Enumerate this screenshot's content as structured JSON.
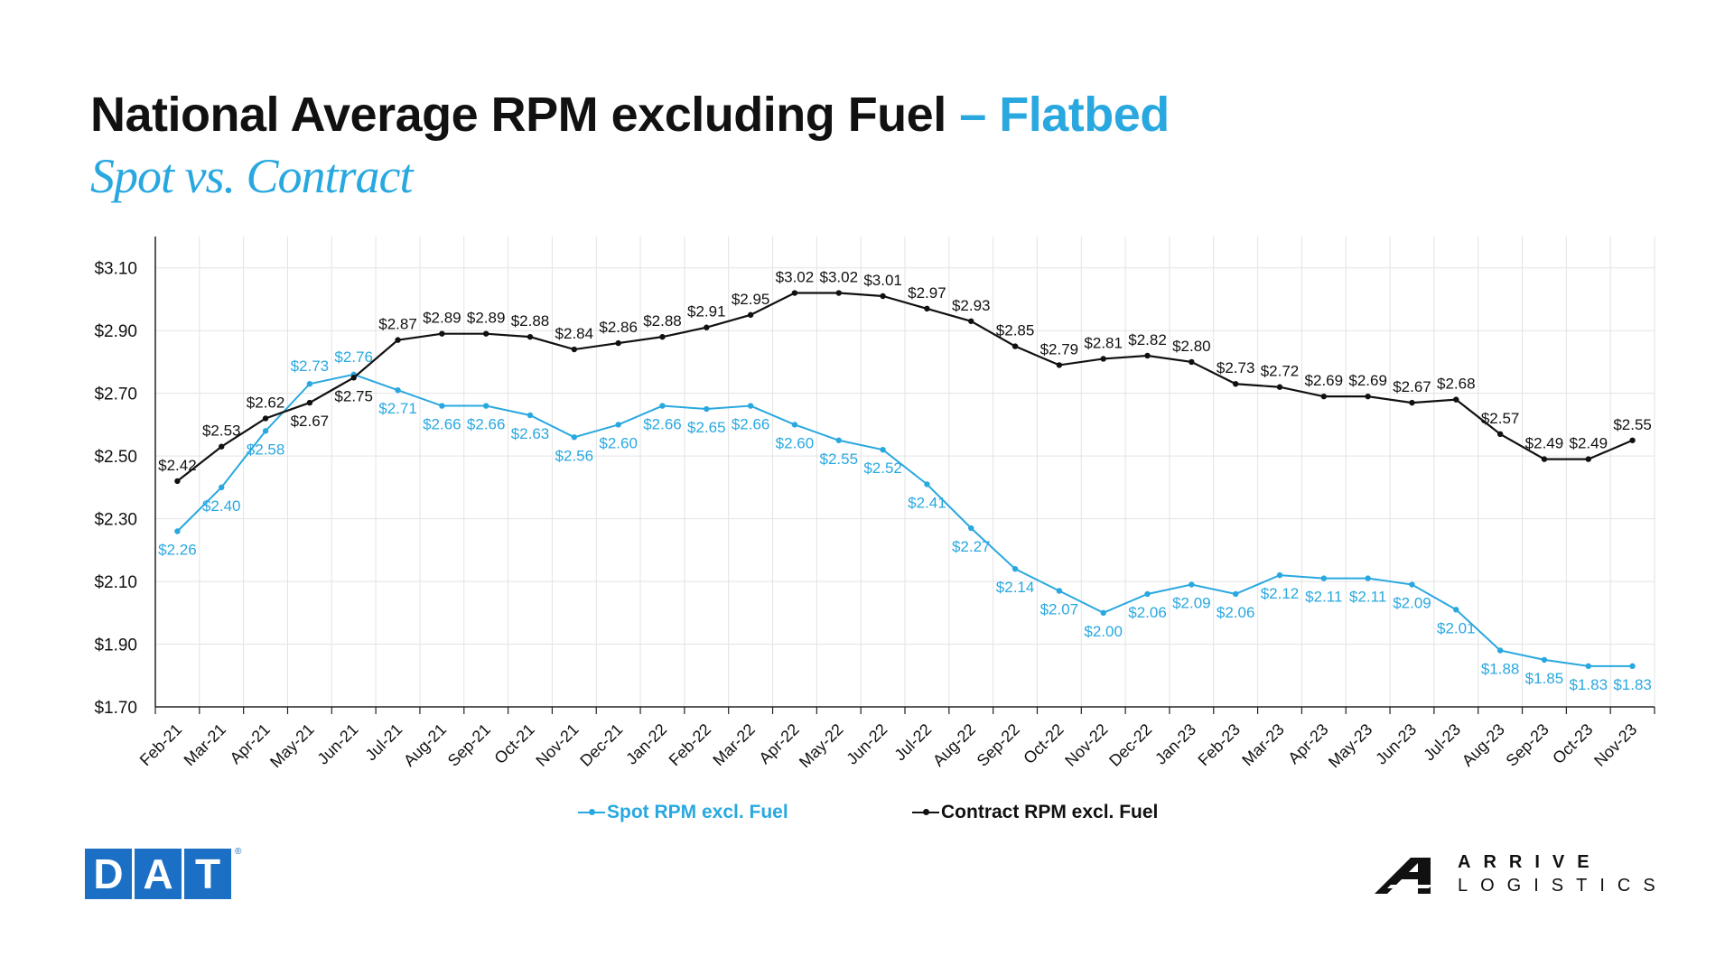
{
  "title": {
    "main": "National Average RPM excluding Fuel",
    "accent": " – Flatbed",
    "subtitle": "Spot vs. Contract"
  },
  "colors": {
    "spot": "#29a8e0",
    "contract": "#111111",
    "grid": "#e3e3e3",
    "axis": "#222222",
    "brand_blue": "#1b6fc4"
  },
  "chart_data": {
    "type": "line",
    "title": "National Average RPM excluding Fuel – Flatbed",
    "subtitle": "Spot vs. Contract",
    "xlabel": "",
    "ylabel": "",
    "ylim": [
      1.7,
      3.2
    ],
    "yticks": [
      1.7,
      1.9,
      2.1,
      2.3,
      2.5,
      2.7,
      2.9,
      3.1
    ],
    "ytick_labels": [
      "$1.70",
      "$1.90",
      "$2.10",
      "$2.30",
      "$2.50",
      "$2.70",
      "$2.90",
      "$3.10"
    ],
    "grid": true,
    "legend_position": "bottom",
    "categories": [
      "Feb-21",
      "Mar-21",
      "Apr-21",
      "May-21",
      "Jun-21",
      "Jul-21",
      "Aug-21",
      "Sep-21",
      "Oct-21",
      "Nov-21",
      "Dec-21",
      "Jan-22",
      "Feb-22",
      "Mar-22",
      "Apr-22",
      "May-22",
      "Jun-22",
      "Jul-22",
      "Aug-22",
      "Sep-22",
      "Oct-22",
      "Nov-22",
      "Dec-22",
      "Jan-23",
      "Feb-23",
      "Mar-23",
      "Apr-23",
      "May-23",
      "Jun-23",
      "Jul-23",
      "Aug-23",
      "Sep-23",
      "Oct-23",
      "Nov-23"
    ],
    "series": [
      {
        "name": "Spot RPM excl. Fuel",
        "color": "#29a8e0",
        "values": [
          2.26,
          2.4,
          2.58,
          2.73,
          2.76,
          2.71,
          2.66,
          2.66,
          2.63,
          2.56,
          2.6,
          2.66,
          2.65,
          2.66,
          2.6,
          2.55,
          2.52,
          2.41,
          2.27,
          2.14,
          2.07,
          2.0,
          2.06,
          2.09,
          2.06,
          2.12,
          2.11,
          2.11,
          2.09,
          2.01,
          1.88,
          1.85,
          1.83,
          1.83
        ],
        "labels": [
          "$2.26",
          "$2.40",
          "$2.58",
          "$2.73",
          "$2.76",
          "$2.71",
          "$2.66",
          "$2.66",
          "$2.63",
          "$2.56",
          "$2.60",
          "$2.66",
          "$2.65",
          "$2.66",
          "$2.60",
          "$2.55",
          "$2.52",
          "$2.41",
          "$2.27",
          "$2.14",
          "$2.07",
          "$2.00",
          "$2.06",
          "$2.09",
          "$2.06",
          "$2.12",
          "$2.11",
          "$2.11",
          "$2.09",
          "$2.01",
          "$1.88",
          "$1.85",
          "$1.83",
          "$1.83"
        ]
      },
      {
        "name": "Contract RPM excl. Fuel",
        "color": "#111111",
        "values": [
          2.42,
          2.53,
          2.62,
          2.67,
          2.75,
          2.87,
          2.89,
          2.89,
          2.88,
          2.84,
          2.86,
          2.88,
          2.91,
          2.95,
          3.02,
          3.02,
          3.01,
          2.97,
          2.93,
          2.85,
          2.79,
          2.81,
          2.82,
          2.8,
          2.73,
          2.72,
          2.69,
          2.69,
          2.67,
          2.68,
          2.57,
          2.49,
          2.49,
          2.55
        ],
        "labels": [
          "$2.42",
          "$2.53",
          "$2.62",
          "$2.67",
          "$2.75",
          "$2.87",
          "$2.89",
          "$2.89",
          "$2.88",
          "$2.84",
          "$2.86",
          "$2.88",
          "$2.91",
          "$2.95",
          "$3.02",
          "$3.02",
          "$3.01",
          "$2.97",
          "$2.93",
          "$2.85",
          "$2.79",
          "$2.81",
          "$2.82",
          "$2.80",
          "$2.73",
          "$2.72",
          "$2.69",
          "$2.69",
          "$2.67",
          "$2.68",
          "$2.57",
          "$2.49",
          "$2.49",
          "$2.55"
        ]
      }
    ]
  },
  "legend": {
    "spot": "Spot RPM excl. Fuel",
    "contract": "Contract RPM excl. Fuel"
  },
  "logos": {
    "dat": [
      "D",
      "A",
      "T"
    ],
    "dat_reg": "®",
    "arrive_line1": "ARRIVE",
    "arrive_line2": "LOGISTICS"
  }
}
